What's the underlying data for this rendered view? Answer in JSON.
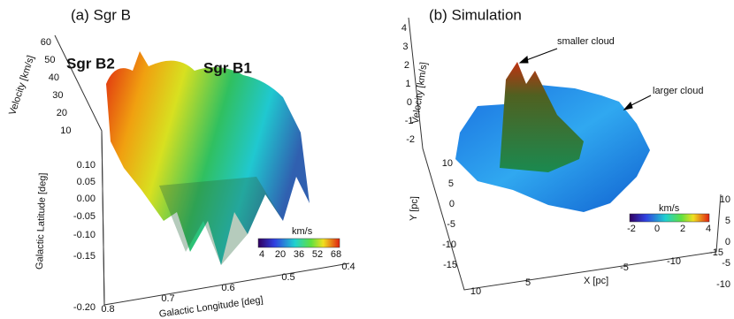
{
  "panel_a": {
    "title": "(a) Sgr B",
    "labels": [
      "Sgr B2",
      "Sgr B1"
    ],
    "velocity_axis": {
      "label": "Velocity [km/s]",
      "ticks": [
        "60",
        "50",
        "40",
        "30",
        "20",
        "10"
      ]
    },
    "latitude_axis": {
      "label": "Galactic Latitude [deg]",
      "ticks": [
        "0.10",
        "0.05",
        "0.00",
        "-0.05",
        "-0.10",
        "-0.15",
        "-0.20"
      ]
    },
    "longitude_axis": {
      "label": "Galactic Longitude [deg]",
      "ticks": [
        "0.8",
        "0.7",
        "0.6",
        "0.5",
        "0.4"
      ]
    },
    "colorbar": {
      "label": "km/s",
      "ticks": [
        "4",
        "20",
        "36",
        "52",
        "68"
      ]
    }
  },
  "panel_b": {
    "title": "(b) Simulation",
    "annotations": [
      "smaller cloud",
      "larger cloud"
    ],
    "velocity_axis": {
      "label": "Velocity [km/s]",
      "ticks": [
        "4",
        "3",
        "2",
        "1",
        "0",
        "-1",
        "-2"
      ]
    },
    "y_axis": {
      "label": "Y [pc]",
      "ticks": [
        "10",
        "5",
        "0",
        "-5",
        "-10",
        "-15"
      ]
    },
    "x_axis": {
      "label": "X [pc]",
      "ticks": [
        "10",
        "5",
        "-5",
        "-10",
        "-15"
      ]
    },
    "z_axis": {
      "ticks": [
        "10",
        "5",
        "0",
        "-5",
        "-10"
      ]
    },
    "colorbar": {
      "label": "km/s",
      "ticks": [
        "-2",
        "0",
        "2",
        "4"
      ]
    }
  }
}
